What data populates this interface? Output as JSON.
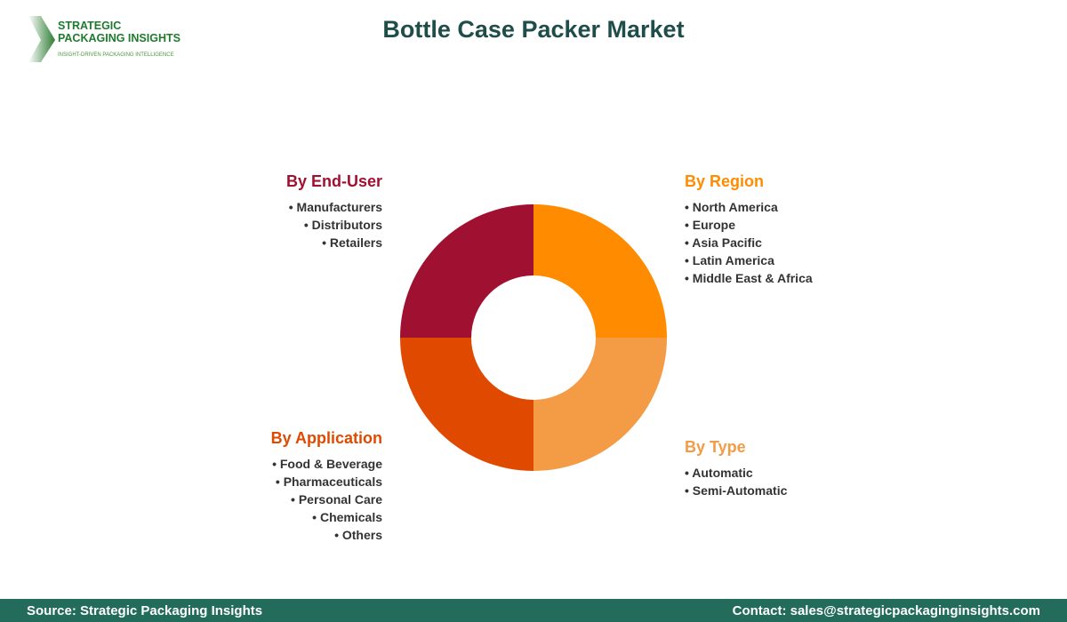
{
  "header": {
    "title": "Bottle Case Packer Market"
  },
  "logo": {
    "line1": "STRATEGIC",
    "line2": "PACKAGING INSIGHTS",
    "tagline": "INSIGHT-DRIVEN PACKAGING INTELLIGENCE"
  },
  "chart_data": {
    "type": "pie",
    "donut": true,
    "categories": [
      "By Region",
      "By Type",
      "By Application",
      "By End-User"
    ],
    "values": [
      25,
      25,
      25,
      25
    ],
    "colors": [
      "#FF8C00",
      "#F39B45",
      "#E04A00",
      "#A01030"
    ],
    "segments": [
      {
        "title": "By Region",
        "color": "#FF8C00",
        "items": [
          "North America",
          "Europe",
          "Asia Pacific",
          "Latin America",
          "Middle East & Africa"
        ]
      },
      {
        "title": "By Type",
        "color": "#F39B45",
        "items": [
          "Automatic",
          "Semi-Automatic"
        ]
      },
      {
        "title": "By Application",
        "color": "#E04A00",
        "items": [
          "Food & Beverage",
          "Pharmaceuticals",
          "Personal Care",
          "Chemicals",
          "Others"
        ]
      },
      {
        "title": "By End-User",
        "color": "#A01030",
        "items": [
          "Manufacturers",
          "Distributors",
          "Retailers"
        ]
      }
    ]
  },
  "footer": {
    "source": "Source: Strategic Packaging Insights",
    "contact": "Contact: sales@strategicpackaginginsights.com"
  }
}
